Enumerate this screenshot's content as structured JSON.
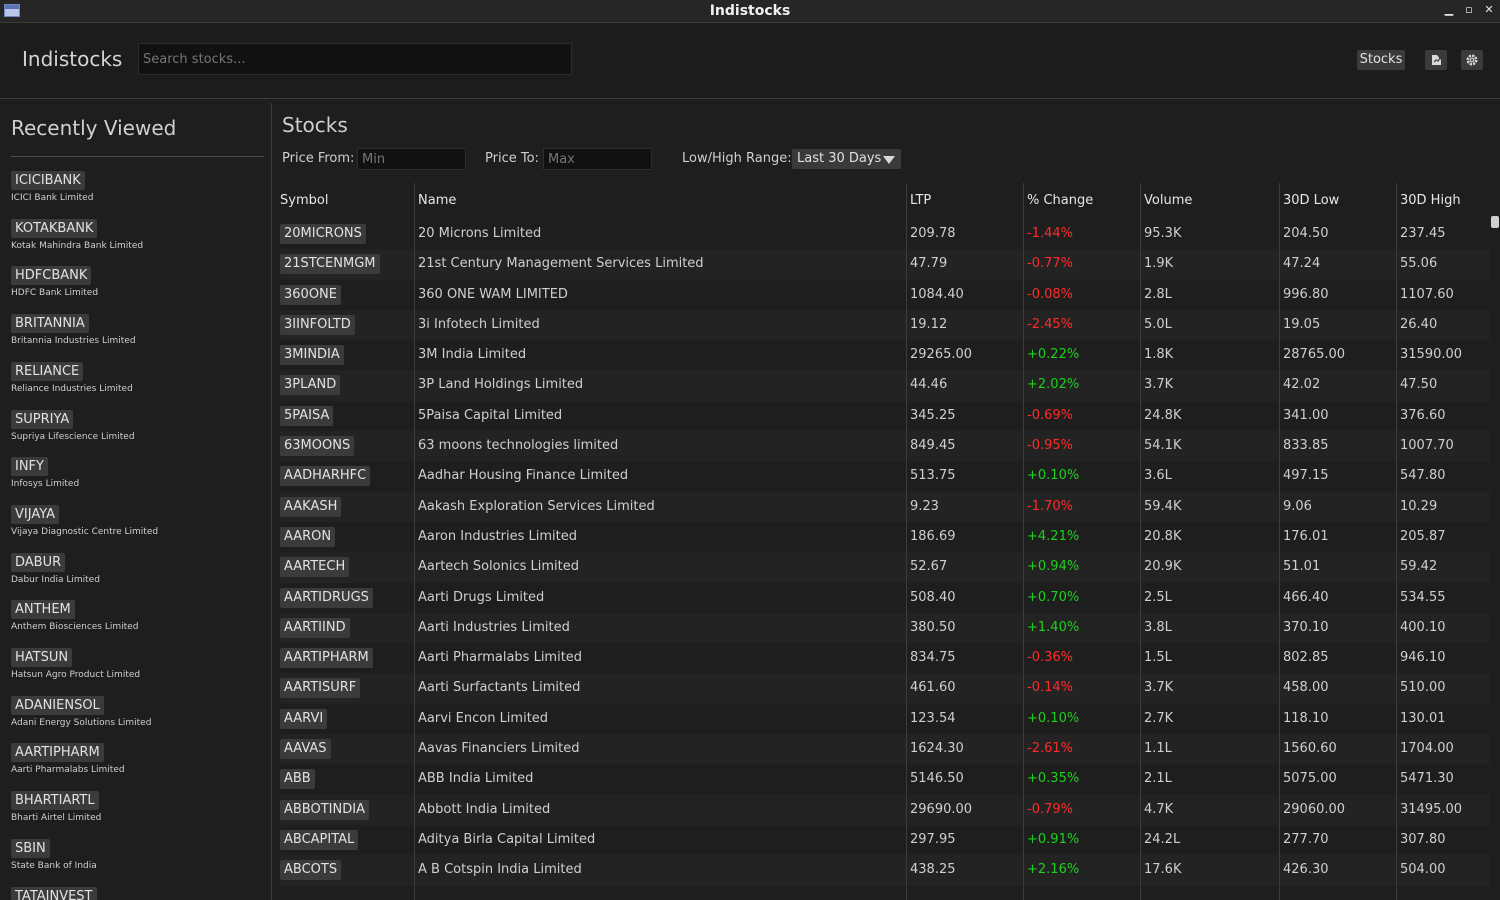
{
  "window": {
    "title": "Indistocks"
  },
  "header": {
    "brand": "Indistocks",
    "search_placeholder": "Search stocks...",
    "stocks_button": "Stocks",
    "icon1": "chart-icon",
    "icon2": "gear-icon"
  },
  "sidebar": {
    "title": "Recently Viewed",
    "items": [
      {
        "symbol": "ICICIBANK",
        "name": "ICICI Bank Limited"
      },
      {
        "symbol": "KOTAKBANK",
        "name": "Kotak Mahindra Bank Limited"
      },
      {
        "symbol": "HDFCBANK",
        "name": "HDFC Bank Limited"
      },
      {
        "symbol": "BRITANNIA",
        "name": "Britannia Industries Limited"
      },
      {
        "symbol": "RELIANCE",
        "name": "Reliance Industries Limited"
      },
      {
        "symbol": "SUPRIYA",
        "name": "Supriya Lifescience Limited"
      },
      {
        "symbol": "INFY",
        "name": "Infosys Limited"
      },
      {
        "symbol": "VIJAYA",
        "name": "Vijaya Diagnostic Centre Limited"
      },
      {
        "symbol": "DABUR",
        "name": "Dabur India Limited"
      },
      {
        "symbol": "ANTHEM",
        "name": "Anthem Biosciences Limited"
      },
      {
        "symbol": "HATSUN",
        "name": "Hatsun Agro Product Limited"
      },
      {
        "symbol": "ADANIENSOL",
        "name": "Adani Energy Solutions Limited"
      },
      {
        "symbol": "AARTIPHARM",
        "name": "Aarti Pharmalabs Limited"
      },
      {
        "symbol": "BHARTIARTL",
        "name": "Bharti Airtel Limited"
      },
      {
        "symbol": "SBIN",
        "name": "State Bank of India"
      },
      {
        "symbol": "TATAINVEST",
        "name": ""
      }
    ]
  },
  "main": {
    "title": "Stocks",
    "filters": {
      "price_from_label": "Price From:",
      "price_from_placeholder": "Min",
      "price_to_label": "Price To:",
      "price_to_placeholder": "Max",
      "range_label": "Low/High Range:",
      "range_value": "Last 30 Days"
    },
    "columns": [
      "Symbol",
      "Name",
      "LTP",
      "% Change",
      "Volume",
      "30D Low",
      "30D High"
    ],
    "rows": [
      {
        "symbol": "20MICRONS",
        "name": "20 Microns Limited",
        "ltp": "209.78",
        "change": "-1.44%",
        "volume": "95.3K",
        "low": "204.50",
        "high": "237.45"
      },
      {
        "symbol": "21STCENMGM",
        "name": "21st Century Management Services Limited",
        "ltp": "47.79",
        "change": "-0.77%",
        "volume": "1.9K",
        "low": "47.24",
        "high": "55.06"
      },
      {
        "symbol": "360ONE",
        "name": "360 ONE WAM LIMITED",
        "ltp": "1084.40",
        "change": "-0.08%",
        "volume": "2.8L",
        "low": "996.80",
        "high": "1107.60"
      },
      {
        "symbol": "3IINFOLTD",
        "name": "3i Infotech Limited",
        "ltp": "19.12",
        "change": "-2.45%",
        "volume": "5.0L",
        "low": "19.05",
        "high": "26.40"
      },
      {
        "symbol": "3MINDIA",
        "name": "3M India Limited",
        "ltp": "29265.00",
        "change": "+0.22%",
        "volume": "1.8K",
        "low": "28765.00",
        "high": "31590.00"
      },
      {
        "symbol": "3PLAND",
        "name": "3P Land Holdings Limited",
        "ltp": "44.46",
        "change": "+2.02%",
        "volume": "3.7K",
        "low": "42.02",
        "high": "47.50"
      },
      {
        "symbol": "5PAISA",
        "name": "5Paisa Capital Limited",
        "ltp": "345.25",
        "change": "-0.69%",
        "volume": "24.8K",
        "low": "341.00",
        "high": "376.60"
      },
      {
        "symbol": "63MOONS",
        "name": "63 moons technologies limited",
        "ltp": "849.45",
        "change": "-0.95%",
        "volume": "54.1K",
        "low": "833.85",
        "high": "1007.70"
      },
      {
        "symbol": "AADHARHFC",
        "name": "Aadhar Housing Finance Limited",
        "ltp": "513.75",
        "change": "+0.10%",
        "volume": "3.6L",
        "low": "497.15",
        "high": "547.80"
      },
      {
        "symbol": "AAKASH",
        "name": "Aakash Exploration Services Limited",
        "ltp": "9.23",
        "change": "-1.70%",
        "volume": "59.4K",
        "low": "9.06",
        "high": "10.29"
      },
      {
        "symbol": "AARON",
        "name": "Aaron Industries Limited",
        "ltp": "186.69",
        "change": "+4.21%",
        "volume": "20.8K",
        "low": "176.01",
        "high": "205.87"
      },
      {
        "symbol": "AARTECH",
        "name": "Aartech Solonics Limited",
        "ltp": "52.67",
        "change": "+0.94%",
        "volume": "20.9K",
        "low": "51.01",
        "high": "59.42"
      },
      {
        "symbol": "AARTIDRUGS",
        "name": "Aarti Drugs Limited",
        "ltp": "508.40",
        "change": "+0.70%",
        "volume": "2.5L",
        "low": "466.40",
        "high": "534.55"
      },
      {
        "symbol": "AARTIIND",
        "name": "Aarti Industries Limited",
        "ltp": "380.50",
        "change": "+1.40%",
        "volume": "3.8L",
        "low": "370.10",
        "high": "400.10"
      },
      {
        "symbol": "AARTIPHARM",
        "name": "Aarti Pharmalabs Limited",
        "ltp": "834.75",
        "change": "-0.36%",
        "volume": "1.5L",
        "low": "802.85",
        "high": "946.10"
      },
      {
        "symbol": "AARTISURF",
        "name": "Aarti Surfactants Limited",
        "ltp": "461.60",
        "change": "-0.14%",
        "volume": "3.7K",
        "low": "458.00",
        "high": "510.00"
      },
      {
        "symbol": "AARVI",
        "name": "Aarvi Encon Limited",
        "ltp": "123.54",
        "change": "+0.10%",
        "volume": "2.7K",
        "low": "118.10",
        "high": "130.01"
      },
      {
        "symbol": "AAVAS",
        "name": "Aavas Financiers Limited",
        "ltp": "1624.30",
        "change": "-2.61%",
        "volume": "1.1L",
        "low": "1560.60",
        "high": "1704.00"
      },
      {
        "symbol": "ABB",
        "name": "ABB India Limited",
        "ltp": "5146.50",
        "change": "+0.35%",
        "volume": "2.1L",
        "low": "5075.00",
        "high": "5471.30"
      },
      {
        "symbol": "ABBOTINDIA",
        "name": "Abbott India Limited",
        "ltp": "29690.00",
        "change": "-0.79%",
        "volume": "4.7K",
        "low": "29060.00",
        "high": "31495.00"
      },
      {
        "symbol": "ABCAPITAL",
        "name": "Aditya Birla Capital Limited",
        "ltp": "297.95",
        "change": "+0.91%",
        "volume": "24.2L",
        "low": "277.70",
        "high": "307.80"
      },
      {
        "symbol": "ABCOTS",
        "name": "A B Cotspin India Limited",
        "ltp": "438.25",
        "change": "+2.16%",
        "volume": "17.6K",
        "low": "426.30",
        "high": "504.00"
      }
    ],
    "colors": {
      "positive": "#1ed01e",
      "negative": "#ff2b2b"
    }
  }
}
